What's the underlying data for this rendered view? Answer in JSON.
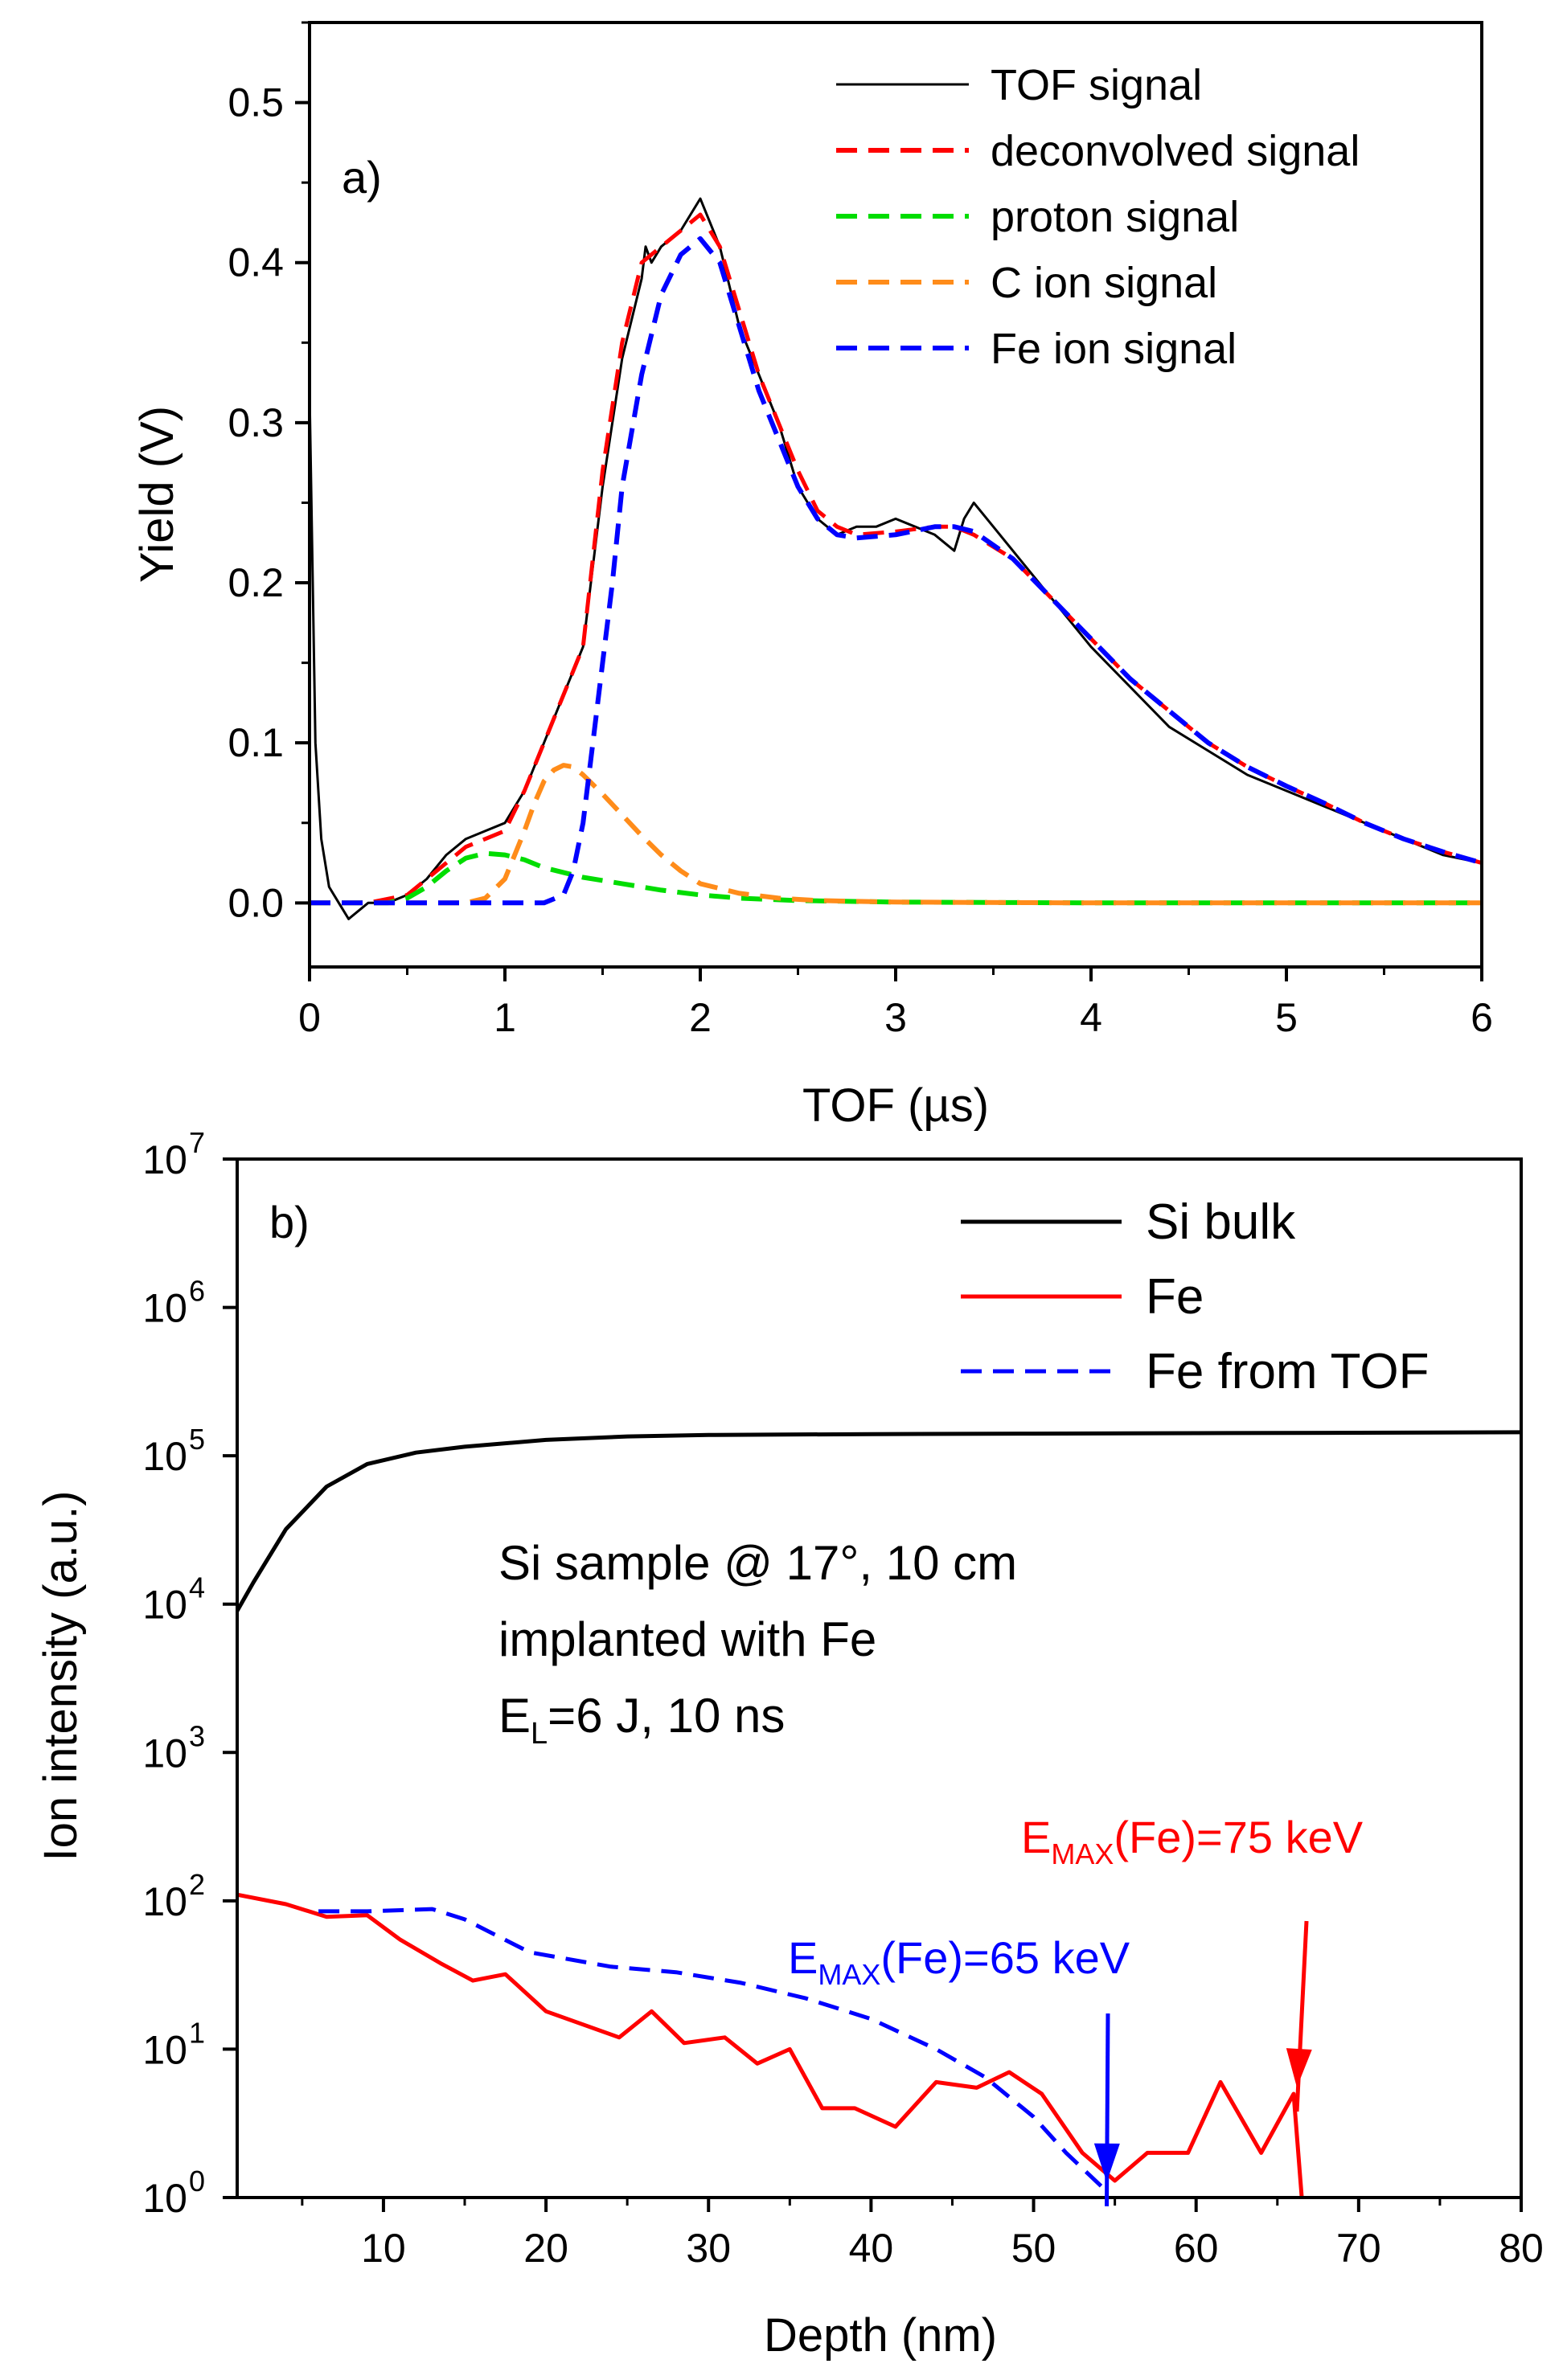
{
  "chart_data": [
    {
      "type": "line",
      "panel_label": "a)",
      "xlabel": "TOF (µs)",
      "ylabel": "Yield (V)",
      "xlim": [
        0,
        6
      ],
      "ylim": [
        -0.04,
        0.55
      ],
      "xticks": [
        "0",
        "1",
        "2",
        "3",
        "4",
        "5",
        "6"
      ],
      "yticks": [
        "0.0",
        "0.1",
        "0.2",
        "0.3",
        "0.4",
        "0.5"
      ],
      "legend_position": "top-right",
      "series": [
        {
          "name": "TOF signal",
          "color": "#000000",
          "style": "solid",
          "x": [
            0,
            0.03,
            0.06,
            0.1,
            0.15,
            0.2,
            0.3,
            0.4,
            0.5,
            0.6,
            0.7,
            0.8,
            0.9,
            1.0,
            1.1,
            1.2,
            1.3,
            1.4,
            1.5,
            1.6,
            1.7,
            1.72,
            1.75,
            1.8,
            1.9,
            2.0,
            2.1,
            2.2,
            2.3,
            2.4,
            2.5,
            2.6,
            2.7,
            2.8,
            2.9,
            3.0,
            3.1,
            3.2,
            3.3,
            3.35,
            3.4,
            3.5,
            3.6,
            3.8,
            4.0,
            4.2,
            4.4,
            4.6,
            4.8,
            5.0,
            5.2,
            5.4,
            5.6,
            5.8,
            6.0
          ],
          "y": [
            0.32,
            0.1,
            0.04,
            0.01,
            0.0,
            -0.01,
            0.0,
            0.0,
            0.005,
            0.015,
            0.03,
            0.04,
            0.045,
            0.05,
            0.07,
            0.1,
            0.13,
            0.16,
            0.26,
            0.34,
            0.39,
            0.41,
            0.4,
            0.41,
            0.42,
            0.44,
            0.41,
            0.36,
            0.33,
            0.3,
            0.26,
            0.24,
            0.23,
            0.235,
            0.235,
            0.24,
            0.235,
            0.23,
            0.22,
            0.24,
            0.25,
            0.235,
            0.22,
            0.19,
            0.16,
            0.135,
            0.11,
            0.095,
            0.08,
            0.07,
            0.06,
            0.05,
            0.04,
            0.03,
            0.025
          ]
        },
        {
          "name": "deconvolved signal",
          "color": "#ff0000",
          "style": "dash",
          "x": [
            0,
            0.3,
            0.5,
            0.6,
            0.7,
            0.8,
            0.9,
            1.0,
            1.1,
            1.2,
            1.3,
            1.4,
            1.5,
            1.6,
            1.7,
            1.8,
            1.9,
            2.0,
            2.1,
            2.2,
            2.3,
            2.4,
            2.5,
            2.6,
            2.7,
            2.8,
            3.0,
            3.2,
            3.3,
            3.4,
            3.6,
            3.8,
            4.0,
            4.2,
            4.4,
            4.6,
            4.8,
            5.0,
            5.2,
            5.4,
            5.6,
            5.8,
            6.0
          ],
          "y": [
            0.0,
            0.0,
            0.005,
            0.015,
            0.025,
            0.035,
            0.04,
            0.045,
            0.07,
            0.1,
            0.13,
            0.16,
            0.27,
            0.35,
            0.4,
            0.41,
            0.42,
            0.43,
            0.41,
            0.37,
            0.33,
            0.3,
            0.27,
            0.245,
            0.235,
            0.23,
            0.232,
            0.235,
            0.235,
            0.23,
            0.215,
            0.19,
            0.165,
            0.14,
            0.12,
            0.1,
            0.085,
            0.073,
            0.062,
            0.05,
            0.04,
            0.032,
            0.025
          ]
        },
        {
          "name": "proton signal",
          "color": "#00dd00",
          "style": "dash",
          "x": [
            0,
            0.4,
            0.5,
            0.6,
            0.7,
            0.8,
            0.9,
            1.0,
            1.1,
            1.2,
            1.4,
            1.6,
            1.8,
            2.0,
            2.2,
            2.5,
            3.0,
            4.0,
            5.0,
            6.0
          ],
          "y": [
            0.0,
            0.0,
            0.003,
            0.01,
            0.02,
            0.028,
            0.031,
            0.03,
            0.027,
            0.022,
            0.016,
            0.012,
            0.008,
            0.005,
            0.003,
            0.0015,
            0.0005,
            0.0,
            0.0,
            0.0
          ]
        },
        {
          "name": "C ion signal",
          "color": "#ff8c1a",
          "style": "dash",
          "x": [
            0,
            0.8,
            0.9,
            1.0,
            1.05,
            1.1,
            1.15,
            1.2,
            1.25,
            1.3,
            1.35,
            1.4,
            1.5,
            1.6,
            1.7,
            1.8,
            1.9,
            2.0,
            2.2,
            2.4,
            2.6,
            3.0,
            4.0,
            5.0,
            6.0
          ],
          "y": [
            0.0,
            0.0,
            0.003,
            0.015,
            0.03,
            0.045,
            0.062,
            0.076,
            0.083,
            0.086,
            0.085,
            0.08,
            0.068,
            0.055,
            0.042,
            0.03,
            0.02,
            0.012,
            0.006,
            0.003,
            0.0015,
            0.0005,
            0.0,
            0.0,
            0.0
          ]
        },
        {
          "name": "Fe ion signal",
          "color": "#0000ff",
          "style": "dash",
          "x": [
            0,
            1.2,
            1.3,
            1.35,
            1.4,
            1.45,
            1.5,
            1.55,
            1.6,
            1.7,
            1.8,
            1.9,
            2.0,
            2.1,
            2.2,
            2.3,
            2.4,
            2.5,
            2.6,
            2.7,
            2.8,
            3.0,
            3.2,
            3.3,
            3.4,
            3.6,
            3.8,
            4.0,
            4.2,
            4.4,
            4.6,
            4.8,
            5.0,
            5.2,
            5.4,
            5.6,
            5.8,
            6.0
          ],
          "y": [
            0.0,
            0.0,
            0.005,
            0.02,
            0.05,
            0.1,
            0.15,
            0.2,
            0.26,
            0.33,
            0.38,
            0.405,
            0.415,
            0.4,
            0.36,
            0.32,
            0.29,
            0.26,
            0.24,
            0.23,
            0.228,
            0.23,
            0.235,
            0.235,
            0.232,
            0.215,
            0.19,
            0.165,
            0.14,
            0.12,
            0.1,
            0.085,
            0.073,
            0.062,
            0.05,
            0.04,
            0.032,
            0.025
          ]
        }
      ]
    },
    {
      "type": "line",
      "panel_label": "b)",
      "xlabel": "Depth (nm)",
      "ylabel": "Ion intensity (a.u.)",
      "xlim": [
        1,
        80
      ],
      "ylim": [
        1,
        10000000
      ],
      "yscale": "log",
      "xticks": [
        "10",
        "20",
        "30",
        "40",
        "50",
        "60",
        "70",
        "80"
      ],
      "yticks": [
        "10",
        "10",
        "10",
        "10",
        "10",
        "10",
        "10",
        "10"
      ],
      "ytick_exponents": [
        "0",
        "1",
        "2",
        "3",
        "4",
        "5",
        "6",
        "7"
      ],
      "legend_position": "top-right",
      "annotation": {
        "line1": "Si sample @ 17°, 10 cm",
        "line2": "implanted with Fe",
        "line3_main": "E",
        "line3_sub": "L",
        "line3_rest": "=6 J, 10 ns"
      },
      "arrow_labels": [
        {
          "main": "E",
          "sub": "MAX",
          "rest": "(Fe)=75 keV",
          "color": "#ff0000"
        },
        {
          "main": "E",
          "sub": "MAX",
          "rest": "(Fe)=65 keV",
          "color": "#0000ff"
        }
      ],
      "series": [
        {
          "name": "Si bulk",
          "color": "#000000",
          "style": "solid",
          "x": [
            1,
            2,
            4,
            6.5,
            9,
            12,
            15,
            20,
            25,
            30,
            40,
            50,
            60,
            70,
            80
          ],
          "y": [
            9000,
            14000,
            32000,
            62000,
            88000,
            105000,
            115000,
            128000,
            135000,
            138000,
            140000,
            141000,
            142000,
            143000,
            144000
          ]
        },
        {
          "name": "Fe",
          "color": "#ff0000",
          "style": "solid",
          "x": [
            1,
            4,
            6.5,
            9,
            11,
            13.5,
            15.5,
            17.5,
            20,
            24.5,
            26.5,
            28.5,
            31,
            33,
            35,
            37,
            39,
            41.5,
            44,
            46.5,
            48.5,
            50.5,
            53,
            55,
            57,
            59.5,
            61.5,
            64,
            66,
            66.5
          ],
          "y": [
            110,
            95,
            78,
            80,
            55,
            38,
            29,
            32,
            18,
            12,
            18,
            11,
            12,
            8,
            10,
            4,
            4,
            3,
            6,
            5.5,
            7,
            5,
            2,
            1.3,
            2,
            2,
            6,
            2,
            5,
            1
          ]
        },
        {
          "name": "Fe from TOF",
          "color": "#0000ff",
          "style": "dash",
          "x": [
            6,
            9,
            13,
            15,
            19,
            24,
            28,
            32,
            36,
            40,
            44,
            47,
            50,
            52,
            54.5
          ],
          "y": [
            85,
            85,
            88,
            75,
            45,
            36,
            33,
            28,
            22,
            16,
            10,
            6.5,
            3.5,
            2,
            1.1
          ]
        }
      ]
    }
  ]
}
